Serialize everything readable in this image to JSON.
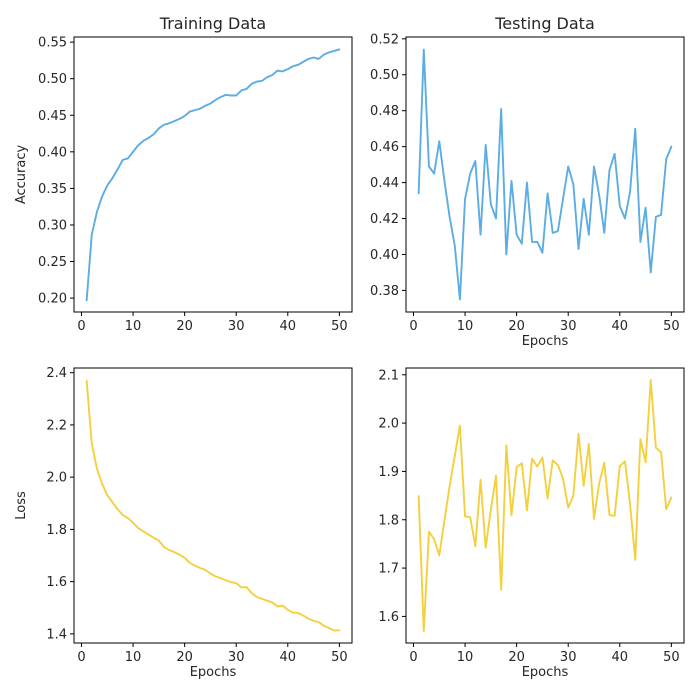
{
  "chart_data": [
    {
      "id": "train-acc",
      "type": "line",
      "title": "Training Data",
      "xlabel": "",
      "ylabel": "Accuracy",
      "xlim": [
        -1.45,
        52.45
      ],
      "ylim": [
        0.181,
        0.557
      ],
      "xticks": [
        0,
        10,
        20,
        30,
        40,
        50
      ],
      "yticks": [
        0.2,
        0.25,
        0.3,
        0.35,
        0.4,
        0.45,
        0.5,
        0.55
      ],
      "ytick_decimals": 2,
      "grid": false,
      "color": "#5dade2",
      "x": [
        1,
        2,
        3,
        4,
        5,
        6,
        7,
        8,
        9,
        10,
        11,
        12,
        13,
        14,
        15,
        16,
        17,
        18,
        19,
        20,
        21,
        22,
        23,
        24,
        25,
        26,
        27,
        28,
        29,
        30,
        31,
        32,
        33,
        34,
        35,
        36,
        37,
        38,
        39,
        40,
        41,
        42,
        43,
        44,
        45,
        46,
        47,
        48,
        49,
        50
      ],
      "values": [
        0.197,
        0.287,
        0.318,
        0.339,
        0.354,
        0.364,
        0.376,
        0.389,
        0.391,
        0.4,
        0.409,
        0.415,
        0.419,
        0.424,
        0.432,
        0.437,
        0.439,
        0.442,
        0.445,
        0.449,
        0.455,
        0.457,
        0.459,
        0.463,
        0.466,
        0.471,
        0.475,
        0.478,
        0.477,
        0.477,
        0.484,
        0.486,
        0.493,
        0.496,
        0.497,
        0.502,
        0.505,
        0.511,
        0.51,
        0.513,
        0.517,
        0.519,
        0.523,
        0.527,
        0.529,
        0.527,
        0.533,
        0.536,
        0.538,
        0.54
      ]
    },
    {
      "id": "test-acc",
      "type": "line",
      "title": "Testing Data",
      "xlabel": "Epochs",
      "ylabel": "",
      "xlim": [
        -1.45,
        52.45
      ],
      "ylim": [
        0.368,
        0.521
      ],
      "xticks": [
        0,
        10,
        20,
        30,
        40,
        50
      ],
      "yticks": [
        0.38,
        0.4,
        0.42,
        0.44,
        0.46,
        0.48,
        0.5,
        0.52
      ],
      "ytick_decimals": 2,
      "grid": false,
      "color": "#5dade2",
      "x": [
        1,
        2,
        3,
        4,
        5,
        6,
        7,
        8,
        9,
        10,
        11,
        12,
        13,
        14,
        15,
        16,
        17,
        18,
        19,
        20,
        21,
        22,
        23,
        24,
        25,
        26,
        27,
        28,
        29,
        30,
        31,
        32,
        33,
        34,
        35,
        36,
        37,
        38,
        39,
        40,
        41,
        42,
        43,
        44,
        45,
        46,
        47,
        48,
        49,
        50
      ],
      "values": [
        0.434,
        0.514,
        0.449,
        0.445,
        0.463,
        0.441,
        0.421,
        0.405,
        0.375,
        0.431,
        0.445,
        0.452,
        0.411,
        0.461,
        0.428,
        0.42,
        0.481,
        0.4,
        0.441,
        0.411,
        0.406,
        0.44,
        0.407,
        0.407,
        0.401,
        0.434,
        0.412,
        0.413,
        0.431,
        0.449,
        0.439,
        0.403,
        0.431,
        0.411,
        0.449,
        0.433,
        0.412,
        0.447,
        0.456,
        0.427,
        0.42,
        0.435,
        0.47,
        0.407,
        0.426,
        0.39,
        0.421,
        0.422,
        0.453,
        0.46
      ]
    },
    {
      "id": "train-loss",
      "type": "line",
      "title": "",
      "xlabel": "Epochs",
      "ylabel": "Loss",
      "xlim": [
        -1.45,
        52.45
      ],
      "ylim": [
        1.365,
        2.418
      ],
      "xticks": [
        0,
        10,
        20,
        30,
        40,
        50
      ],
      "yticks": [
        1.4,
        1.6,
        1.8,
        2.0,
        2.2,
        2.4
      ],
      "ytick_decimals": 1,
      "grid": false,
      "color": "#f4d03f",
      "x": [
        1,
        2,
        3,
        4,
        5,
        6,
        7,
        8,
        9,
        10,
        11,
        12,
        13,
        14,
        15,
        16,
        17,
        18,
        19,
        20,
        21,
        22,
        23,
        24,
        25,
        26,
        27,
        28,
        29,
        30,
        31,
        32,
        33,
        34,
        35,
        36,
        37,
        38,
        39,
        40,
        41,
        42,
        43,
        44,
        45,
        46,
        47,
        48,
        49,
        50
      ],
      "values": [
        2.37,
        2.128,
        2.032,
        1.975,
        1.931,
        1.904,
        1.877,
        1.855,
        1.844,
        1.825,
        1.805,
        1.792,
        1.78,
        1.768,
        1.757,
        1.733,
        1.721,
        1.713,
        1.703,
        1.691,
        1.672,
        1.661,
        1.652,
        1.645,
        1.631,
        1.62,
        1.613,
        1.605,
        1.598,
        1.594,
        1.578,
        1.579,
        1.556,
        1.541,
        1.534,
        1.527,
        1.52,
        1.505,
        1.508,
        1.492,
        1.481,
        1.48,
        1.47,
        1.458,
        1.45,
        1.445,
        1.431,
        1.422,
        1.413,
        1.413
      ]
    },
    {
      "id": "test-loss",
      "type": "line",
      "title": "",
      "xlabel": "Epochs",
      "ylabel": "",
      "xlim": [
        -1.45,
        52.45
      ],
      "ylim": [
        1.545,
        2.114
      ],
      "xticks": [
        0,
        10,
        20,
        30,
        40,
        50
      ],
      "yticks": [
        1.6,
        1.7,
        1.8,
        1.9,
        2.0,
        2.1
      ],
      "ytick_decimals": 1,
      "grid": false,
      "color": "#f4d03f",
      "x": [
        1,
        2,
        3,
        4,
        5,
        6,
        7,
        8,
        9,
        10,
        11,
        12,
        13,
        14,
        15,
        16,
        17,
        18,
        19,
        20,
        21,
        22,
        23,
        24,
        25,
        26,
        27,
        28,
        29,
        30,
        31,
        32,
        33,
        34,
        35,
        36,
        37,
        38,
        39,
        40,
        41,
        42,
        43,
        44,
        45,
        46,
        47,
        48,
        49,
        50
      ],
      "values": [
        1.849,
        1.57,
        1.775,
        1.76,
        1.726,
        1.798,
        1.869,
        1.932,
        1.995,
        1.807,
        1.805,
        1.745,
        1.883,
        1.742,
        1.821,
        1.891,
        1.655,
        1.954,
        1.809,
        1.909,
        1.917,
        1.819,
        1.926,
        1.91,
        1.929,
        1.844,
        1.923,
        1.913,
        1.885,
        1.825,
        1.85,
        1.978,
        1.87,
        1.957,
        1.802,
        1.875,
        1.918,
        1.81,
        1.808,
        1.911,
        1.921,
        1.832,
        1.717,
        1.967,
        1.919,
        2.089,
        1.949,
        1.94,
        1.822,
        1.846
      ]
    }
  ]
}
